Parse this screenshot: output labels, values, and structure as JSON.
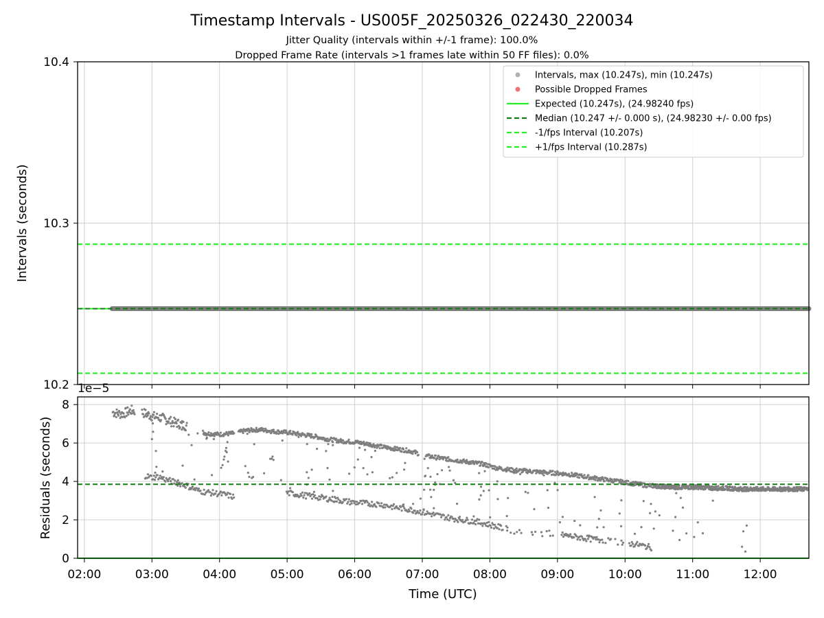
{
  "chart_data": [
    {
      "type": "scatter",
      "title": "Timestamp Intervals - US005F_20250326_022430_220034",
      "subtitle_lines": [
        "Jitter Quality (intervals within +/-1 frame): 100.0%",
        "Dropped Frame Rate (intervals >1 frames late within 50 FF files): 0.0%"
      ],
      "xlabel": "",
      "ylabel": "Intervals (seconds)",
      "x_unit": "hours UTC",
      "xlim": [
        1.9,
        12.72
      ],
      "ylim": [
        10.2,
        10.4
      ],
      "yticks": [
        10.2,
        10.3,
        10.4
      ],
      "ytick_labels": [
        "10.2",
        "10.3",
        "10.4"
      ],
      "grid": true,
      "legend_position": "upper-right",
      "colors": {
        "intervals": "#7f7f7f",
        "dropped": "#f07070",
        "expected": "#22ee22",
        "median": "#157a15",
        "bounds": "#22ee22"
      },
      "legend": [
        {
          "label": "Intervals, max (10.247s), min (10.247s)",
          "kind": "dot",
          "color": "#b0b0b0"
        },
        {
          "label": "Possible Dropped Frames",
          "kind": "dot",
          "color": "#f07070"
        },
        {
          "label": "Expected (10.247s), (24.98240 fps)",
          "kind": "solid",
          "color": "#22ee22"
        },
        {
          "label": "Median (10.247 +/- 0.000 s), (24.98230 +/- 0.00 fps)",
          "kind": "dashed",
          "color": "#157a15"
        },
        {
          "label": "-1/fps Interval (10.207s)",
          "kind": "dashed",
          "color": "#22ee22"
        },
        {
          "label": "+1/fps Interval (10.287s)",
          "kind": "dashed",
          "color": "#22ee22"
        }
      ],
      "series": [
        {
          "name": "Intervals, max (10.247s), min (10.247s)",
          "x_range": [
            2.41,
            12.72
          ],
          "y": 10.247
        },
        {
          "name": "Possible Dropped Frames",
          "x": [],
          "y": []
        }
      ],
      "hlines": [
        {
          "name": "Expected",
          "y": 10.247,
          "style": "solid"
        },
        {
          "name": "Median",
          "y": 10.247,
          "style": "dashed"
        },
        {
          "name": "-1/fps Interval",
          "y": 10.207,
          "style": "dashed"
        },
        {
          "name": "+1/fps Interval",
          "y": 10.287,
          "style": "dashed"
        }
      ]
    },
    {
      "type": "scatter",
      "title": "",
      "xlabel": "Time (UTC)",
      "ylabel": "Residuals (seconds)",
      "x_unit": "hours UTC",
      "xlim": [
        1.9,
        12.72
      ],
      "ylim": [
        0,
        8.4
      ],
      "offset_label": "1e−5",
      "yticks": [
        0,
        2,
        4,
        6,
        8
      ],
      "ytick_labels": [
        "0",
        "2",
        "4",
        "6",
        "8"
      ],
      "xticks": [
        2,
        3,
        4,
        5,
        6,
        7,
        8,
        9,
        10,
        11,
        12
      ],
      "xtick_labels": [
        "02:00",
        "03:00",
        "04:00",
        "05:00",
        "06:00",
        "07:00",
        "08:00",
        "09:00",
        "10:00",
        "11:00",
        "12:00"
      ],
      "grid": true,
      "hlines": [
        {
          "name": "median-residual",
          "y": 3.85,
          "style": "dashed",
          "color": "#157a15"
        },
        {
          "name": "zero-residual",
          "y": 0,
          "style": "solid",
          "color": "#22ee22"
        }
      ],
      "series": [
        {
          "name": "upper-band",
          "x": [
            2.42,
            2.55,
            2.7,
            2.85,
            3.0,
            3.15,
            3.3,
            3.5,
            3.8,
            4.0,
            4.2,
            4.4,
            4.6,
            4.8,
            5.0,
            5.2,
            5.4,
            5.6,
            5.8,
            6.0,
            6.2,
            6.4,
            6.6,
            6.8,
            7.1,
            7.3,
            7.5,
            7.7,
            7.9,
            8.1,
            8.3,
            8.5,
            8.7,
            8.9,
            9.1,
            9.3,
            9.5,
            9.7,
            9.9,
            10.1,
            10.3,
            10.5,
            10.7,
            10.9,
            11.1,
            11.3,
            11.5,
            11.7,
            11.9,
            12.1,
            12.3,
            12.5,
            12.7
          ],
          "y": [
            7.6,
            7.5,
            7.7,
            7.6,
            7.4,
            7.3,
            7.1,
            6.9,
            6.5,
            6.45,
            6.5,
            6.65,
            6.7,
            6.6,
            6.55,
            6.45,
            6.35,
            6.2,
            6.1,
            6.05,
            5.95,
            5.8,
            5.7,
            5.6,
            5.3,
            5.2,
            5.1,
            5.0,
            4.9,
            4.7,
            4.6,
            4.55,
            4.5,
            4.45,
            4.4,
            4.3,
            4.2,
            4.1,
            4.0,
            3.9,
            3.8,
            3.75,
            3.7,
            3.7,
            3.7,
            3.65,
            3.65,
            3.6,
            3.6,
            3.6,
            3.6,
            3.6,
            3.6
          ]
        },
        {
          "name": "lower-band",
          "x": [
            2.9,
            3.0,
            3.1,
            3.2,
            3.3,
            3.5,
            3.7,
            3.9,
            4.1,
            4.2,
            5.0,
            5.2,
            5.4,
            5.6,
            5.8,
            6.0,
            6.2,
            6.4,
            6.6,
            6.8,
            7.0,
            7.2,
            7.4,
            7.6,
            7.8,
            8.0,
            8.15,
            8.4,
            8.7,
            9.1,
            9.3,
            9.5,
            9.7,
            9.9,
            10.1,
            10.2,
            10.4
          ],
          "y": [
            4.3,
            4.2,
            4.25,
            4.1,
            4.0,
            3.8,
            3.5,
            3.4,
            3.3,
            3.2,
            3.4,
            3.3,
            3.2,
            3.1,
            3.0,
            2.9,
            2.85,
            2.8,
            2.65,
            2.55,
            2.4,
            2.25,
            2.1,
            2.0,
            1.9,
            1.75,
            1.6,
            1.4,
            1.3,
            1.2,
            1.1,
            1.0,
            0.95,
            0.85,
            0.75,
            0.7,
            0.55
          ]
        }
      ]
    }
  ]
}
